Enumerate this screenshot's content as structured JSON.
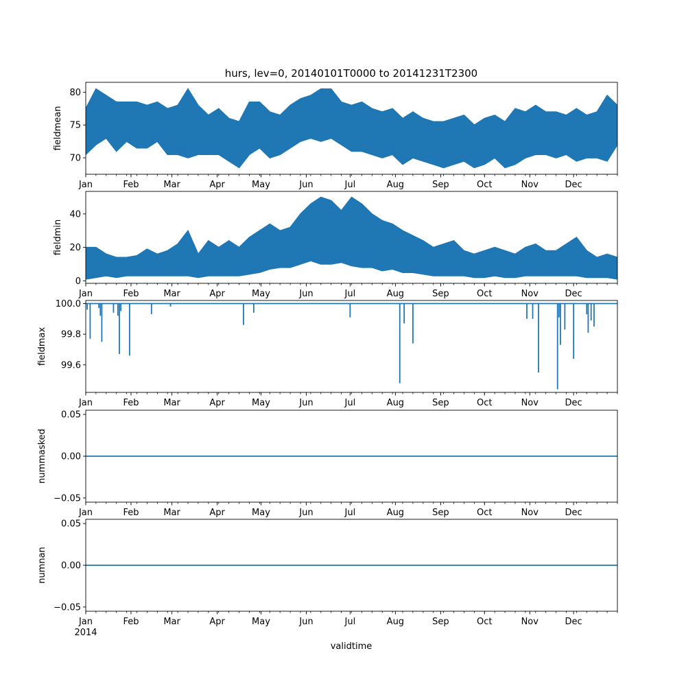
{
  "chart_data": {
    "type": "line",
    "title": "hurs, lev=0, 20140101T0000 to 20141231T2300",
    "xlabel": "validtime",
    "x_range": [
      "2014-01-01",
      "2014-12-31"
    ],
    "x_tick_labels": [
      "Jan",
      "Feb",
      "Mar",
      "Apr",
      "May",
      "Jun",
      "Jul",
      "Aug",
      "Sep",
      "Oct",
      "Nov",
      "Dec"
    ],
    "year_label": "2014",
    "series_color": "#1f77b4",
    "panels": [
      {
        "ylabel": "fieldmean",
        "ylim": [
          67.5,
          81.5
        ],
        "y_ticks": [
          "70",
          "75",
          "80"
        ],
        "y_tick_values": [
          70,
          75,
          80
        ],
        "weekly_points": [
          [
            "2014-01-01",
            70.5,
            77.5
          ],
          [
            "2014-01-08",
            72.0,
            80.5
          ],
          [
            "2014-01-15",
            73.0,
            79.5
          ],
          [
            "2014-01-22",
            71.0,
            78.5
          ],
          [
            "2014-01-29",
            72.5,
            78.5
          ],
          [
            "2014-02-05",
            71.5,
            78.5
          ],
          [
            "2014-02-12",
            71.5,
            78.0
          ],
          [
            "2014-02-19",
            72.5,
            78.5
          ],
          [
            "2014-02-26",
            70.5,
            77.5
          ],
          [
            "2014-03-05",
            70.5,
            78.0
          ],
          [
            "2014-03-12",
            70.0,
            80.5
          ],
          [
            "2014-03-19",
            70.5,
            78.0
          ],
          [
            "2014-03-26",
            70.5,
            76.5
          ],
          [
            "2014-04-02",
            70.5,
            77.5
          ],
          [
            "2014-04-09",
            69.5,
            76.0
          ],
          [
            "2014-04-16",
            68.5,
            75.5
          ],
          [
            "2014-04-23",
            70.5,
            78.5
          ],
          [
            "2014-04-30",
            71.5,
            78.5
          ],
          [
            "2014-05-07",
            70.0,
            77.0
          ],
          [
            "2014-05-14",
            70.5,
            76.5
          ],
          [
            "2014-05-21",
            71.5,
            78.0
          ],
          [
            "2014-05-28",
            72.5,
            79.0
          ],
          [
            "2014-06-04",
            73.0,
            79.5
          ],
          [
            "2014-06-11",
            72.5,
            80.5
          ],
          [
            "2014-06-18",
            73.0,
            80.5
          ],
          [
            "2014-06-25",
            72.0,
            78.5
          ],
          [
            "2014-07-02",
            71.0,
            78.0
          ],
          [
            "2014-07-09",
            71.0,
            78.5
          ],
          [
            "2014-07-16",
            70.5,
            77.5
          ],
          [
            "2014-07-23",
            70.0,
            77.0
          ],
          [
            "2014-07-30",
            70.5,
            77.5
          ],
          [
            "2014-08-06",
            69.0,
            76.0
          ],
          [
            "2014-08-13",
            70.0,
            77.0
          ],
          [
            "2014-08-20",
            69.5,
            76.0
          ],
          [
            "2014-08-27",
            69.0,
            75.5
          ],
          [
            "2014-09-03",
            68.5,
            75.5
          ],
          [
            "2014-09-10",
            69.0,
            76.0
          ],
          [
            "2014-09-17",
            69.5,
            76.5
          ],
          [
            "2014-09-24",
            68.5,
            75.0
          ],
          [
            "2014-10-01",
            69.0,
            76.0
          ],
          [
            "2014-10-08",
            70.0,
            76.5
          ],
          [
            "2014-10-15",
            68.5,
            75.5
          ],
          [
            "2014-10-22",
            69.0,
            77.5
          ],
          [
            "2014-10-29",
            70.0,
            77.0
          ],
          [
            "2014-11-05",
            70.5,
            78.0
          ],
          [
            "2014-11-12",
            70.5,
            77.0
          ],
          [
            "2014-11-19",
            70.0,
            77.0
          ],
          [
            "2014-11-26",
            70.5,
            76.5
          ],
          [
            "2014-12-03",
            69.5,
            77.5
          ],
          [
            "2014-12-10",
            70.0,
            76.5
          ],
          [
            "2014-12-17",
            70.0,
            77.0
          ],
          [
            "2014-12-24",
            69.5,
            79.5
          ],
          [
            "2014-12-31",
            72.0,
            78.0
          ]
        ]
      },
      {
        "ylabel": "fieldmin",
        "ylim": [
          -1.5,
          53.5
        ],
        "y_ticks": [
          "0",
          "20",
          "40"
        ],
        "y_tick_values": [
          0,
          20,
          40
        ],
        "weekly_points": [
          [
            "2014-01-01",
            1,
            20
          ],
          [
            "2014-01-08",
            2,
            20
          ],
          [
            "2014-01-15",
            3,
            16
          ],
          [
            "2014-01-22",
            2,
            14
          ],
          [
            "2014-01-29",
            3,
            14
          ],
          [
            "2014-02-05",
            3,
            15
          ],
          [
            "2014-02-12",
            3,
            19
          ],
          [
            "2014-02-19",
            3,
            16
          ],
          [
            "2014-02-26",
            3,
            18
          ],
          [
            "2014-03-05",
            3,
            22
          ],
          [
            "2014-03-12",
            3,
            30
          ],
          [
            "2014-03-19",
            2,
            16
          ],
          [
            "2014-03-26",
            3,
            24
          ],
          [
            "2014-04-02",
            3,
            20
          ],
          [
            "2014-04-09",
            3,
            24
          ],
          [
            "2014-04-16",
            3,
            20
          ],
          [
            "2014-04-23",
            4,
            26
          ],
          [
            "2014-04-30",
            5,
            30
          ],
          [
            "2014-05-07",
            7,
            34
          ],
          [
            "2014-05-14",
            8,
            30
          ],
          [
            "2014-05-21",
            8,
            32
          ],
          [
            "2014-05-28",
            10,
            40
          ],
          [
            "2014-06-04",
            12,
            46
          ],
          [
            "2014-06-11",
            10,
            50
          ],
          [
            "2014-06-18",
            10,
            48
          ],
          [
            "2014-06-25",
            11,
            42
          ],
          [
            "2014-07-02",
            9,
            50
          ],
          [
            "2014-07-09",
            8,
            46
          ],
          [
            "2014-07-16",
            8,
            40
          ],
          [
            "2014-07-23",
            6,
            36
          ],
          [
            "2014-07-30",
            7,
            34
          ],
          [
            "2014-08-06",
            5,
            30
          ],
          [
            "2014-08-13",
            5,
            27
          ],
          [
            "2014-08-20",
            4,
            24
          ],
          [
            "2014-08-27",
            3,
            20
          ],
          [
            "2014-09-03",
            3,
            22
          ],
          [
            "2014-09-10",
            3,
            24
          ],
          [
            "2014-09-17",
            3,
            18
          ],
          [
            "2014-09-24",
            2,
            16
          ],
          [
            "2014-10-01",
            2,
            18
          ],
          [
            "2014-10-08",
            3,
            20
          ],
          [
            "2014-10-15",
            2,
            18
          ],
          [
            "2014-10-22",
            2,
            16
          ],
          [
            "2014-10-29",
            3,
            20
          ],
          [
            "2014-11-05",
            3,
            22
          ],
          [
            "2014-11-12",
            3,
            18
          ],
          [
            "2014-11-19",
            3,
            18
          ],
          [
            "2014-11-26",
            3,
            22
          ],
          [
            "2014-12-03",
            3,
            26
          ],
          [
            "2014-12-10",
            2,
            18
          ],
          [
            "2014-12-17",
            2,
            14
          ],
          [
            "2014-12-24",
            2,
            16
          ],
          [
            "2014-12-31",
            1,
            14
          ]
        ]
      },
      {
        "ylabel": "fieldmax",
        "ylim": [
          99.42,
          100.02
        ],
        "y_ticks": [
          "99.6",
          "99.8",
          "100.0"
        ],
        "y_tick_values": [
          99.6,
          99.8,
          100.0
        ],
        "baseline": 100.0,
        "dips": [
          [
            "2014-01-02",
            99.96
          ],
          [
            "2014-01-04",
            99.77
          ],
          [
            "2014-01-10",
            99.97
          ],
          [
            "2014-01-11",
            99.92
          ],
          [
            "2014-01-12",
            99.75
          ],
          [
            "2014-01-20",
            99.94
          ],
          [
            "2014-01-23",
            99.92
          ],
          [
            "2014-01-24",
            99.67
          ],
          [
            "2014-01-25",
            99.95
          ],
          [
            "2014-01-31",
            99.66
          ],
          [
            "2014-02-15",
            99.93
          ],
          [
            "2014-02-28",
            99.98
          ],
          [
            "2014-04-19",
            99.86
          ],
          [
            "2014-04-26",
            99.94
          ],
          [
            "2014-07-01",
            99.91
          ],
          [
            "2014-08-04",
            99.48
          ],
          [
            "2014-08-07",
            99.87
          ],
          [
            "2014-08-13",
            99.74
          ],
          [
            "2014-10-30",
            99.9
          ],
          [
            "2014-11-03",
            99.9
          ],
          [
            "2014-11-07",
            99.55
          ],
          [
            "2014-11-20",
            99.44
          ],
          [
            "2014-11-21",
            99.91
          ],
          [
            "2014-11-22",
            99.73
          ],
          [
            "2014-11-25",
            99.83
          ],
          [
            "2014-12-01",
            99.64
          ],
          [
            "2014-12-10",
            99.93
          ],
          [
            "2014-12-11",
            99.81
          ],
          [
            "2014-12-13",
            99.89
          ],
          [
            "2014-12-15",
            99.85
          ]
        ]
      },
      {
        "ylabel": "nummasked",
        "ylim": [
          -0.055,
          0.055
        ],
        "y_ticks": [
          "−0.05",
          "0.00",
          "0.05"
        ],
        "y_tick_values": [
          -0.05,
          0.0,
          0.05
        ],
        "constant": 0.0
      },
      {
        "ylabel": "numnan",
        "ylim": [
          -0.055,
          0.055
        ],
        "y_ticks": [
          "−0.05",
          "0.00",
          "0.05"
        ],
        "y_tick_values": [
          -0.05,
          0.0,
          0.05
        ],
        "constant": 0.0
      }
    ]
  }
}
